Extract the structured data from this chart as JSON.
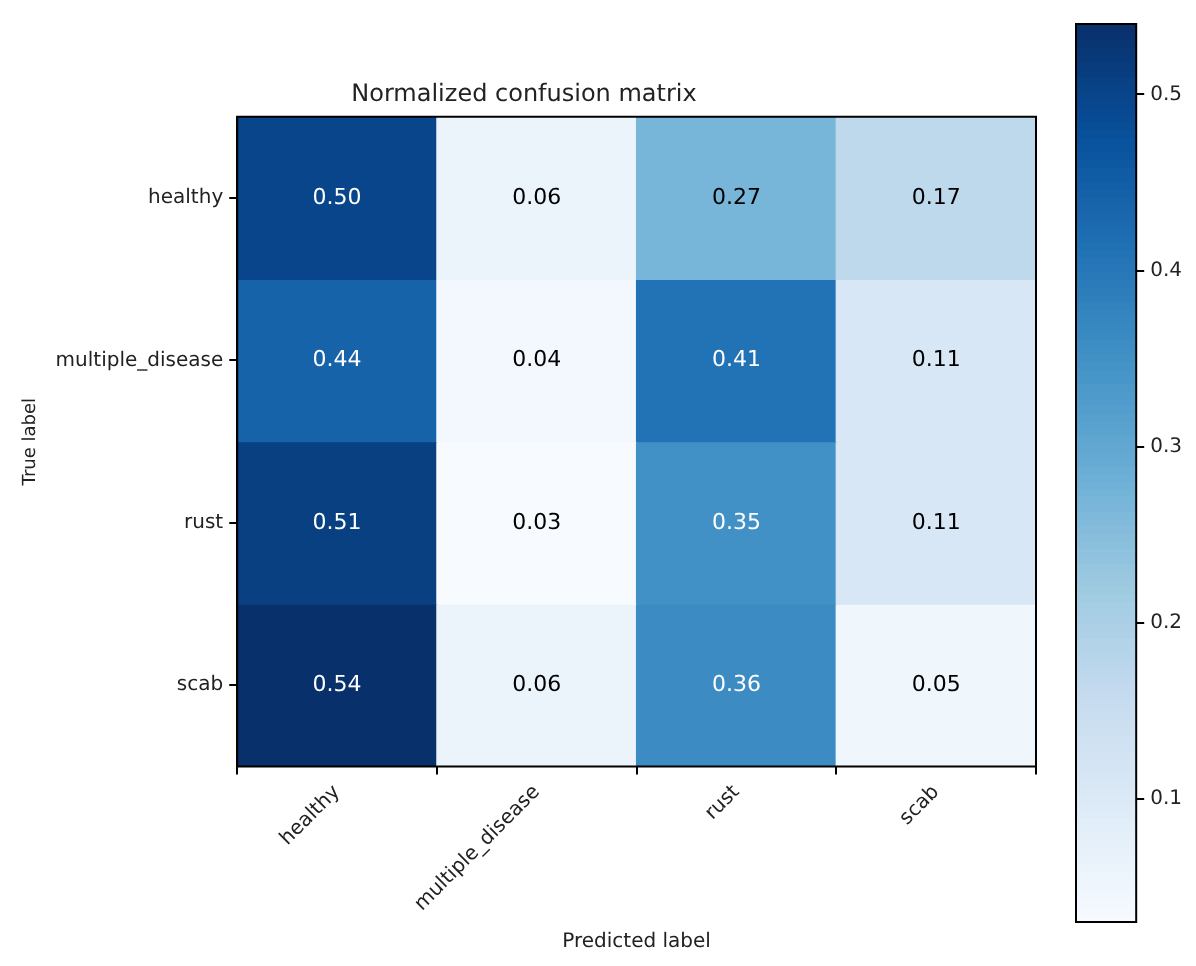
{
  "chart_data": {
    "type": "heatmap",
    "title": "Normalized confusion matrix",
    "xlabel": "Predicted label",
    "ylabel": "True label",
    "categories": [
      "healthy",
      "multiple_disease",
      "rust",
      "scab"
    ],
    "y_categories": [
      "healthy",
      "multiple_disease",
      "rust",
      "scab"
    ],
    "cells": [
      [
        0.5,
        0.06,
        0.27,
        0.17
      ],
      [
        0.44,
        0.04,
        0.41,
        0.11
      ],
      [
        0.51,
        0.03,
        0.35,
        0.11
      ],
      [
        0.54,
        0.06,
        0.36,
        0.05
      ]
    ],
    "cell_labels": [
      [
        "0.50",
        "0.06",
        "0.27",
        "0.17"
      ],
      [
        "0.44",
        "0.04",
        "0.41",
        "0.11"
      ],
      [
        "0.51",
        "0.03",
        "0.35",
        "0.11"
      ],
      [
        "0.54",
        "0.06",
        "0.36",
        "0.05"
      ]
    ],
    "clim": [
      0.03,
      0.54
    ],
    "cticks": [
      0.1,
      0.2,
      0.3,
      0.4,
      0.5
    ]
  }
}
